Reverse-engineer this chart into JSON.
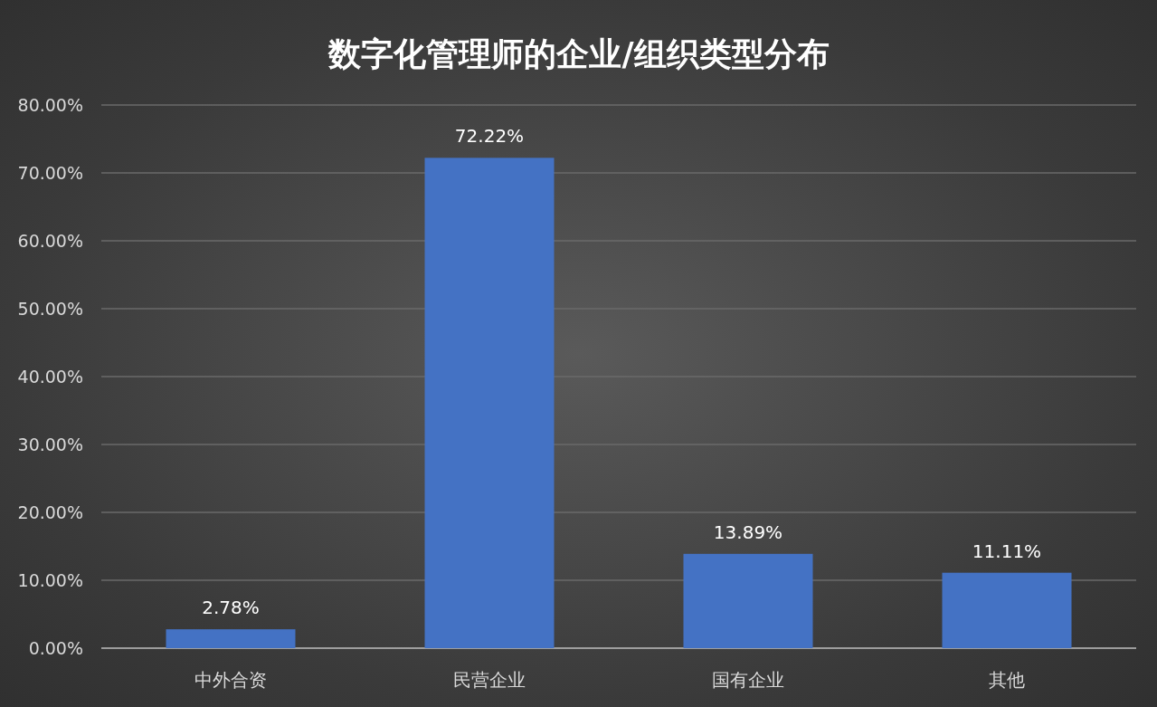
{
  "chart_data": {
    "type": "bar",
    "title": "数字化管理师的企业/组织类型分布",
    "categories": [
      "中外合资",
      "民营企业",
      "国有企业",
      "其他"
    ],
    "values": [
      2.78,
      72.22,
      13.89,
      11.11
    ],
    "value_labels": [
      "2.78%",
      "72.22%",
      "13.89%",
      "11.11%"
    ],
    "color": "#4472c4",
    "ylim": [
      0,
      80
    ],
    "yticks": [
      {
        "value": 0,
        "label": "0.00%"
      },
      {
        "value": 10,
        "label": "10.00%"
      },
      {
        "value": 20,
        "label": "20.00%"
      },
      {
        "value": 30,
        "label": "30.00%"
      },
      {
        "value": 40,
        "label": "40.00%"
      },
      {
        "value": 50,
        "label": "50.00%"
      },
      {
        "value": 60,
        "label": "60.00%"
      },
      {
        "value": 70,
        "label": "70.00%"
      },
      {
        "value": 80,
        "label": "80.00%"
      }
    ],
    "grid": "y"
  }
}
